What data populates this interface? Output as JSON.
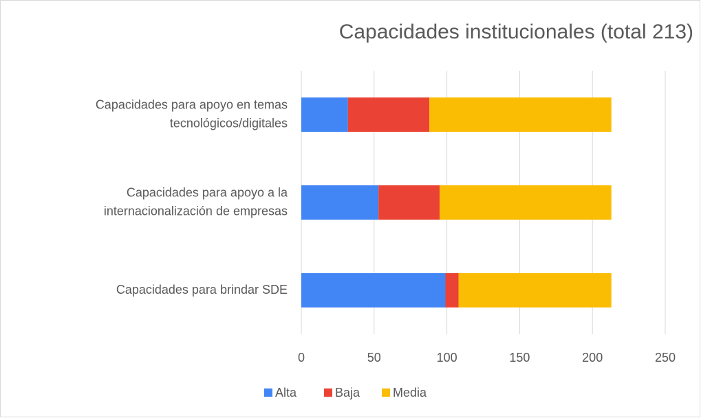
{
  "chart_data": {
    "type": "stacked_bar_horizontal",
    "title": "Capacidades institucionales (total 213)",
    "categories": [
      [
        "Capacidades para apoyo en temas",
        "tecnológicos/digitales"
      ],
      [
        "Capacidades para apoyo a la",
        "internacionalización de empresas"
      ],
      [
        "Capacidades para brindar SDE"
      ]
    ],
    "series": [
      {
        "name": "Alta",
        "color": "#4285f4",
        "values": [
          32,
          53,
          99
        ]
      },
      {
        "name": "Baja",
        "color": "#ea4335",
        "values": [
          56,
          42,
          9
        ]
      },
      {
        "name": "Media",
        "color": "#fbbc04",
        "values": [
          125,
          118,
          105
        ]
      }
    ],
    "xlim": [
      0,
      250
    ],
    "xticks": [
      0,
      50,
      100,
      150,
      200,
      250
    ],
    "grid": true,
    "legend": "bottom"
  }
}
